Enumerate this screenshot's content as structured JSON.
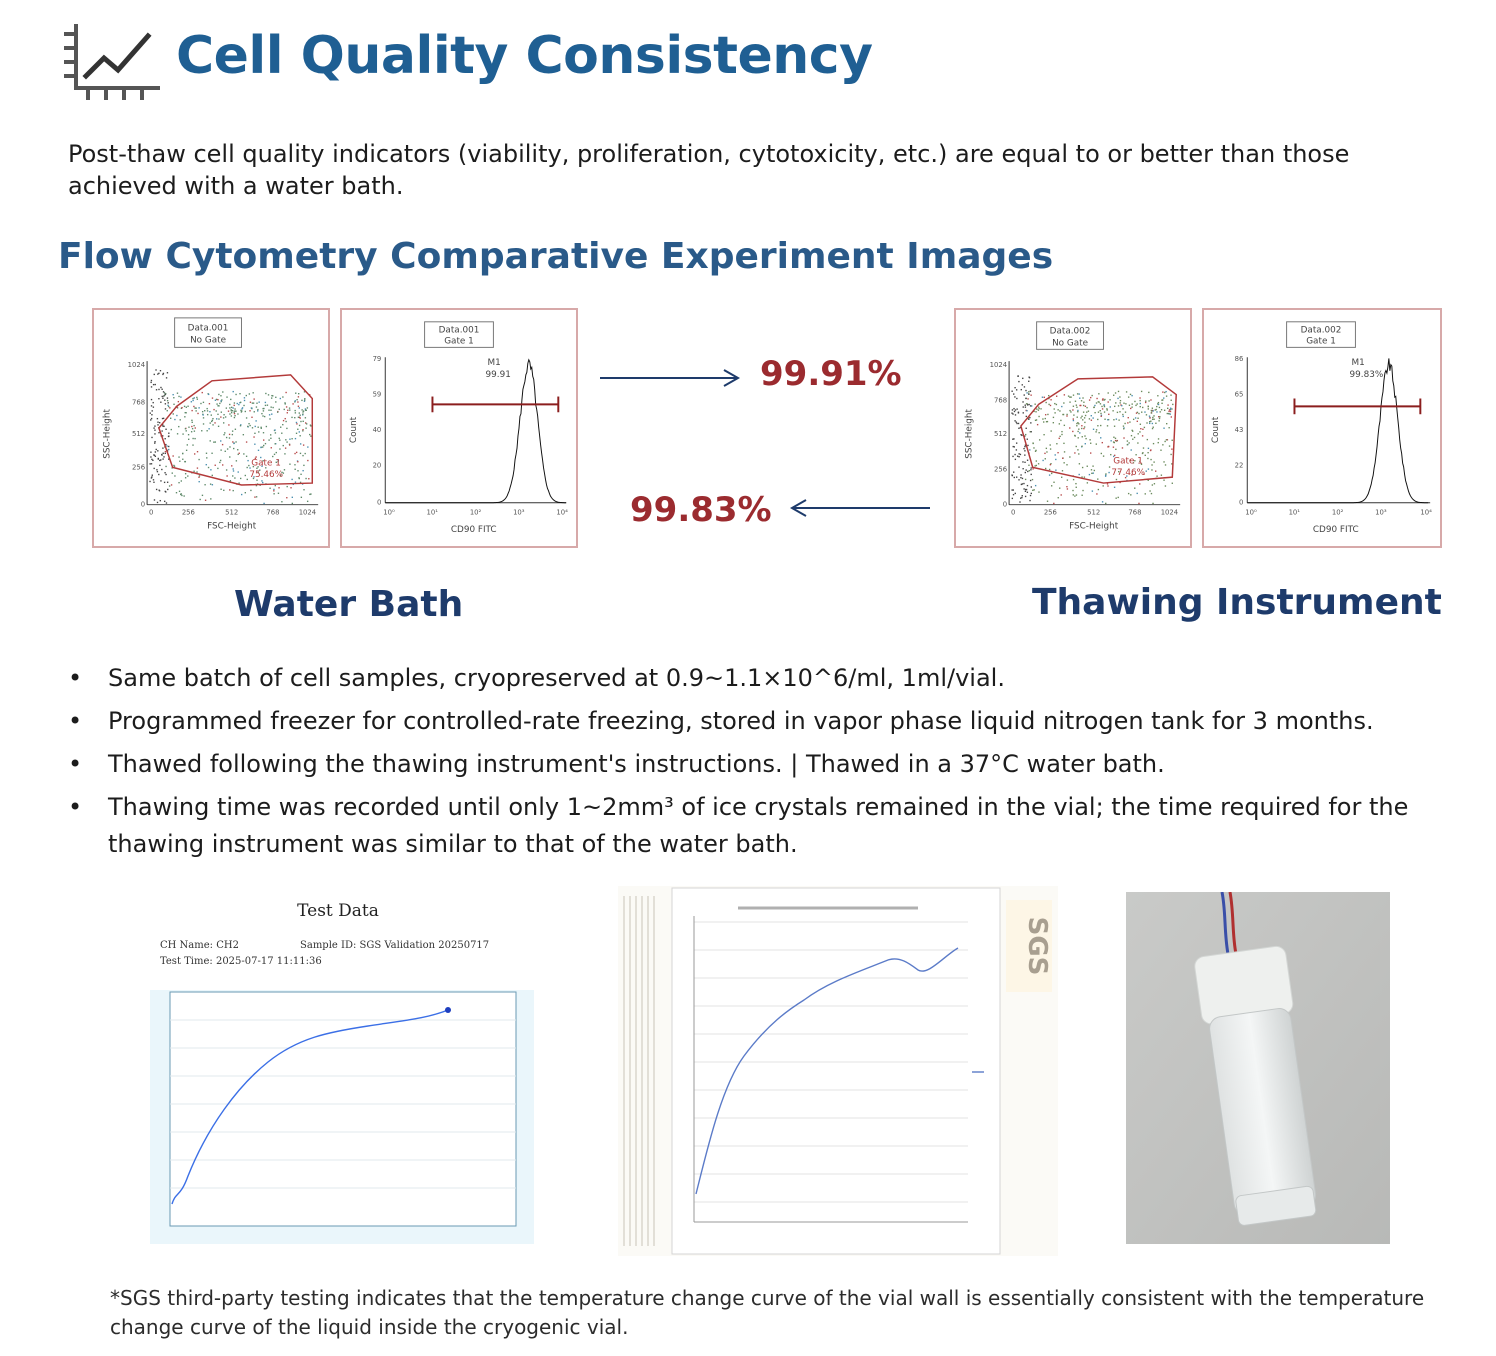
{
  "header": {
    "title": "Cell Quality Consistency",
    "icon": "line-chart-icon",
    "intro": "Post-thaw cell quality indicators (viability, proliferation, cytotoxicity, etc.) are equal to or better than those achieved with a water bath."
  },
  "section": {
    "title": "Flow Cytometry Comparative Experiment Images"
  },
  "colors": {
    "title": "#1f5f93",
    "percent": "#9b2b2f",
    "label": "#1e3b6b",
    "gate": "#b33a3a"
  },
  "water_bath": {
    "label": "Water Bath",
    "percent": "99.91%",
    "scatter": {
      "header": [
        "Data.001",
        "No Gate"
      ],
      "ylabel": "SSC-Height",
      "xlabel": "FSC-Height",
      "yticks": [
        "1024",
        "768",
        "512",
        "256",
        "0"
      ],
      "xticks": [
        "0",
        "256",
        "512",
        "768",
        "1024"
      ],
      "gate_label": [
        "Gate 1",
        "75.46%"
      ]
    },
    "histogram": {
      "header": [
        "Data.001",
        "Gate 1"
      ],
      "ylabel": "Count",
      "xlabel": "CD90 FITC",
      "yticks": [
        "79",
        "59",
        "40",
        "20",
        "0"
      ],
      "xticks": [
        "10⁰",
        "10¹",
        "10²",
        "10³",
        "10⁴"
      ],
      "marker": [
        "M1",
        "99.91"
      ]
    }
  },
  "thawing_instrument": {
    "label": "Thawing Instrument",
    "percent": "99.83%",
    "scatter": {
      "header": [
        "Data.002",
        "No Gate"
      ],
      "ylabel": "SSC-Height",
      "xlabel": "FSC-Height",
      "yticks": [
        "1024",
        "768",
        "512",
        "256",
        "0"
      ],
      "xticks": [
        "0",
        "256",
        "512",
        "768",
        "1024"
      ],
      "gate_label": [
        "Gate 1",
        "77.46%"
      ]
    },
    "histogram": {
      "header": [
        "Data.002",
        "Gate 1"
      ],
      "ylabel": "Count",
      "xlabel": "CD90 FITC",
      "yticks": [
        "86",
        "65",
        "43",
        "22",
        "0"
      ],
      "xticks": [
        "10⁰",
        "10¹",
        "10²",
        "10³",
        "10⁴"
      ],
      "marker": [
        "M1",
        "99.83%"
      ]
    }
  },
  "bullets": [
    "Same batch of cell samples, cryopreserved at 0.9~1.1×10^6/ml, 1ml/vial.",
    "Programmed freezer for controlled-rate freezing, stored in vapor phase liquid nitrogen tank for 3 months.",
    "Thawed following the thawing instrument's instructions. | Thawed in a 37°C water bath.",
    "Thawing time was recorded until only 1~2mm³ of ice crystals remained in the vial; the time required for the thawing instrument was similar to that of the water bath."
  ],
  "bullet_symbol": "•",
  "test_data": {
    "title": "Test Data",
    "ch_name": "CH Name: CH2",
    "sample_id": "Sample ID: SGS Validation 20250717",
    "test_time": "Test Time: 2025-07-17 11:11:36"
  },
  "sgs_report": {
    "watermark": "SGS"
  },
  "photo": {
    "icon": "cryovial-photo-icon"
  },
  "footnote": "*SGS third-party testing indicates that the temperature change curve of the vial wall is essentially consistent with the temperature change curve of the liquid inside the cryogenic vial."
}
